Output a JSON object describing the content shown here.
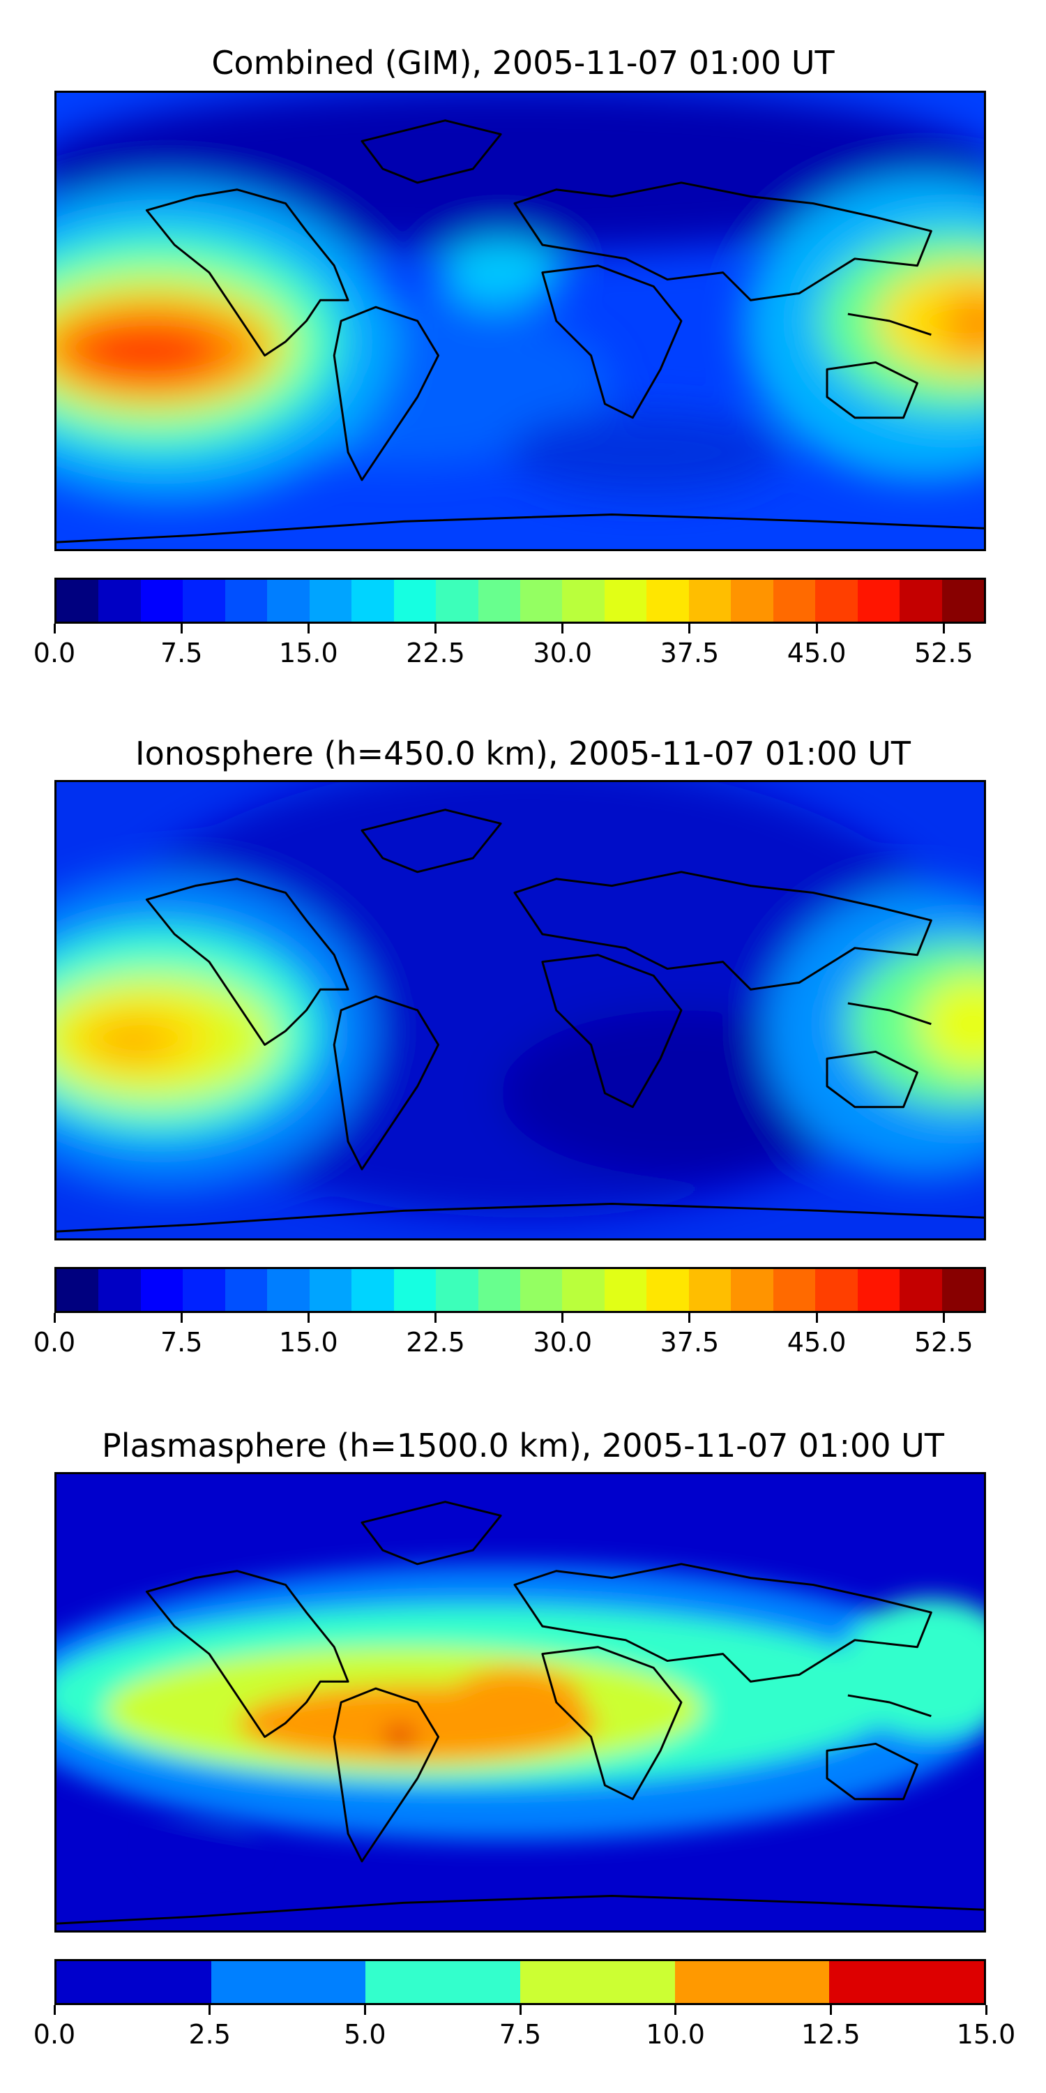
{
  "panels": [
    {
      "title": "Combined (GIM), 2005-11-07 01:00 UT",
      "colorbar": {
        "colors": [
          "#00007f",
          "#0000c4",
          "#0000ff",
          "#0022ff",
          "#0050ff",
          "#007eff",
          "#00a4ff",
          "#00d4ff",
          "#16ffe1",
          "#3cffba",
          "#68ff8e",
          "#94ff62",
          "#baff3c",
          "#e1ff16",
          "#ffe600",
          "#ffbe00",
          "#ff9400",
          "#ff6a00",
          "#ff3f00",
          "#ff1500",
          "#c40000",
          "#880000"
        ],
        "ticks": [
          "0.0",
          "7.5",
          "15.0",
          "22.5",
          "30.0",
          "37.5",
          "45.0",
          "52.5"
        ],
        "range": [
          0,
          55
        ],
        "tick_values": [
          0,
          7.5,
          15,
          22.5,
          30,
          37.5,
          45,
          52.5
        ]
      }
    },
    {
      "title": "Ionosphere  (h=450.0 km), 2005-11-07 01:00 UT",
      "colorbar": {
        "colors": [
          "#00007f",
          "#0000c4",
          "#0000ff",
          "#0022ff",
          "#0050ff",
          "#007eff",
          "#00a4ff",
          "#00d4ff",
          "#16ffe1",
          "#3cffba",
          "#68ff8e",
          "#94ff62",
          "#baff3c",
          "#e1ff16",
          "#ffe600",
          "#ffbe00",
          "#ff9400",
          "#ff6a00",
          "#ff3f00",
          "#ff1500",
          "#c40000",
          "#880000"
        ],
        "ticks": [
          "0.0",
          "7.5",
          "15.0",
          "22.5",
          "30.0",
          "37.5",
          "45.0",
          "52.5"
        ],
        "range": [
          0,
          55
        ],
        "tick_values": [
          0,
          7.5,
          15,
          22.5,
          30,
          37.5,
          45,
          52.5
        ]
      }
    },
    {
      "title": "Plasmasphere (h=1500.0 km), 2005-11-07 01:00 UT",
      "colorbar": {
        "colors": [
          "#0000cc",
          "#0080ff",
          "#33ffcc",
          "#ccff33",
          "#ff9900",
          "#dd0000"
        ],
        "ticks": [
          "0.0",
          "2.5",
          "5.0",
          "7.5",
          "10.0",
          "12.5",
          "15.0"
        ],
        "range": [
          0,
          15
        ],
        "tick_values": [
          0,
          2.5,
          5,
          7.5,
          10,
          12.5,
          15
        ]
      }
    }
  ]
}
